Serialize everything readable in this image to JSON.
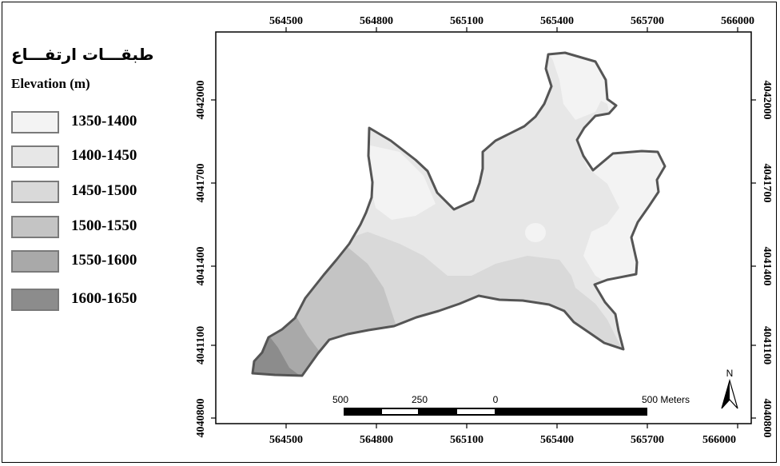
{
  "legend": {
    "title_fa": "طبقـــات ارتفـــاع",
    "title_en": "Elevation (m)",
    "classes": [
      {
        "label": "1350-1400",
        "color": "#f3f3f3"
      },
      {
        "label": "1400-1450",
        "color": "#e7e7e7"
      },
      {
        "label": "1450-1500",
        "color": "#d9d9d9"
      },
      {
        "label": "1500-1550",
        "color": "#c4c4c4"
      },
      {
        "label": "1550-1600",
        "color": "#a9a9a9"
      },
      {
        "label": "1600-1650",
        "color": "#8c8c8c"
      }
    ]
  },
  "grid": {
    "x_labels": [
      "564500",
      "564800",
      "565100",
      "565400",
      "565700",
      "566000"
    ],
    "y_labels": [
      "4042000",
      "4041700",
      "4041400",
      "4041100",
      "4040800"
    ]
  },
  "scale_bar": {
    "labels": [
      "500",
      "250",
      "0",
      "500 Meters"
    ]
  },
  "north_arrow": {
    "label": "N"
  },
  "colors": {
    "outline": "#555555",
    "frame": "#000000"
  }
}
